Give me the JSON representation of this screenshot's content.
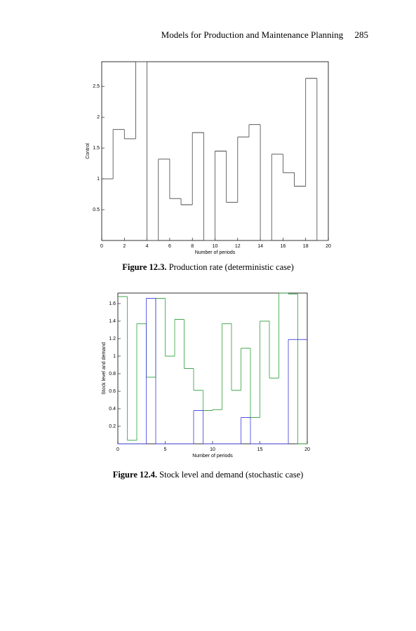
{
  "header": {
    "title": "Models for Production and Maintenance Planning",
    "page": "285"
  },
  "chart_data": [
    {
      "type": "step",
      "caption_label": "Figure 12.3.",
      "caption_text": "Production rate (deterministic case)",
      "xlabel": "Number of periods",
      "ylabel": "Control",
      "xlim": [
        0,
        20
      ],
      "xticks": [
        0,
        2,
        4,
        6,
        8,
        10,
        12,
        14,
        16,
        18,
        20
      ],
      "ylim": [
        0,
        2.9
      ],
      "yticks": [
        0.5,
        1,
        1.5,
        2,
        2.5
      ],
      "series": [
        {
          "color": "#444444",
          "x": [
            0,
            1,
            2,
            3,
            4,
            5,
            6,
            7,
            8,
            9,
            10,
            11,
            12,
            13,
            14,
            15,
            16,
            17,
            18,
            19
          ],
          "values": [
            1.0,
            1.8,
            1.65,
            2.9,
            0,
            1.32,
            0.68,
            0.58,
            1.75,
            0,
            1.45,
            0.62,
            1.68,
            1.88,
            0,
            1.4,
            1.1,
            0.88,
            2.63,
            0
          ]
        }
      ]
    },
    {
      "type": "step",
      "caption_label": "Figure 12.4.",
      "caption_text": "Stock level and demand (stochastic case)",
      "xlabel": "Number of periods",
      "ylabel": "Stock level and demand",
      "xlim": [
        0,
        20
      ],
      "xticks": [
        0,
        5,
        10,
        15,
        20
      ],
      "ylim": [
        0,
        1.72
      ],
      "yticks": [
        0.2,
        0.4,
        0.6,
        0.8,
        1,
        1.2,
        1.4,
        1.6
      ],
      "series": [
        {
          "color": "#2e9e3a",
          "x": [
            0,
            1,
            2,
            3,
            4,
            5,
            6,
            7,
            8,
            9,
            10,
            11,
            12,
            13,
            14,
            15,
            16,
            17,
            18,
            19
          ],
          "values": [
            1.68,
            0.04,
            1.37,
            0.76,
            1.66,
            1.0,
            1.42,
            0.86,
            0.61,
            0.38,
            0.39,
            1.37,
            0.61,
            1.09,
            0.3,
            1.4,
            0.75,
            1.72,
            1.71,
            0
          ]
        },
        {
          "color": "#3a3adc",
          "x": [
            0,
            1,
            2,
            3,
            4,
            5,
            6,
            7,
            8,
            9,
            10,
            11,
            12,
            13,
            14,
            15,
            16,
            17,
            18,
            19
          ],
          "values": [
            0,
            0,
            0,
            1.66,
            0,
            0,
            0,
            0,
            0.38,
            0,
            0,
            0,
            0,
            0.3,
            0,
            0,
            0,
            0,
            1.19,
            1.19
          ]
        }
      ]
    }
  ]
}
